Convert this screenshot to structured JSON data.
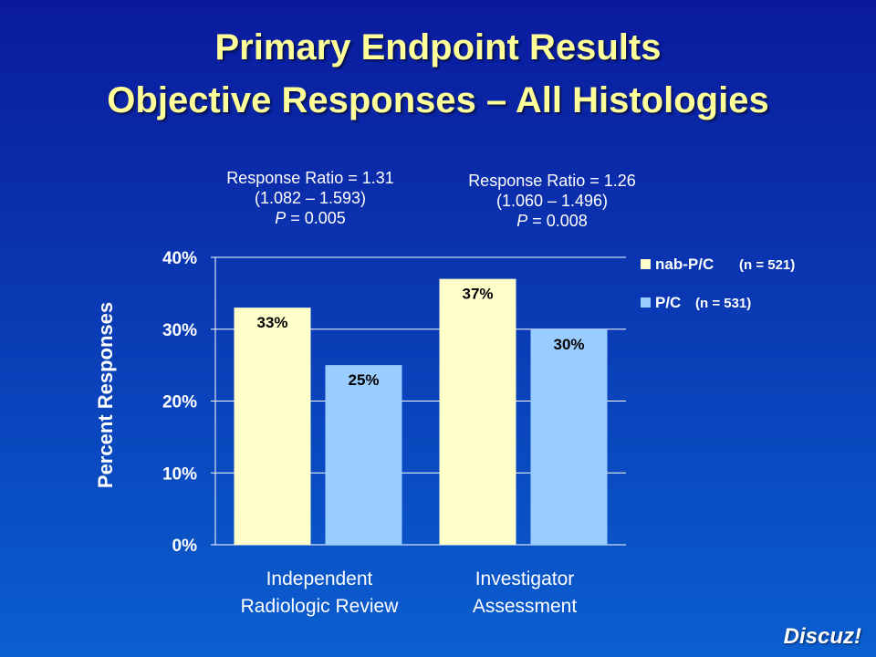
{
  "slide": {
    "title_line1": "Primary Endpoint Results",
    "title_line2": "Objective Responses – All Histologies",
    "watermark": "Discuz!"
  },
  "stats": [
    {
      "ratio": "Response Ratio = 1.31",
      "ci": "(1.082 – 1.593)",
      "p_label": "P",
      "p_value": " = 0.005"
    },
    {
      "ratio": "Response Ratio = 1.26",
      "ci": "(1.060 – 1.496)",
      "p_label": "P",
      "p_value": " = 0.008"
    }
  ],
  "legend": [
    {
      "label": "nab-P/C",
      "n": "(n = 521)"
    },
    {
      "label": "P/C",
      "n": "(n = 531)"
    }
  ],
  "chart_data": {
    "type": "bar",
    "categories": [
      "Independent Radiologic Review",
      "Investigator Assessment"
    ],
    "category_lines": [
      [
        "Independent",
        "Radiologic Review"
      ],
      [
        "Investigator",
        "Assessment"
      ]
    ],
    "series": [
      {
        "name": "nab-P/C",
        "color": "#ffffcc",
        "values": [
          33,
          37
        ],
        "labels": [
          "33%",
          "37%"
        ]
      },
      {
        "name": "P/C",
        "color": "#99ccff",
        "values": [
          25,
          30
        ],
        "labels": [
          "25%",
          "30%"
        ]
      }
    ],
    "ylabel": "Percent Responses",
    "ylim": [
      0,
      40
    ],
    "yticks": [
      0,
      10,
      20,
      30,
      40
    ],
    "ytick_labels": [
      "0%",
      "10%",
      "20%",
      "30%",
      "40%"
    ],
    "grid": true,
    "legend_position": "right",
    "colors": {
      "plot_background": "#0a3fb8",
      "axis": "#ffffff"
    }
  }
}
